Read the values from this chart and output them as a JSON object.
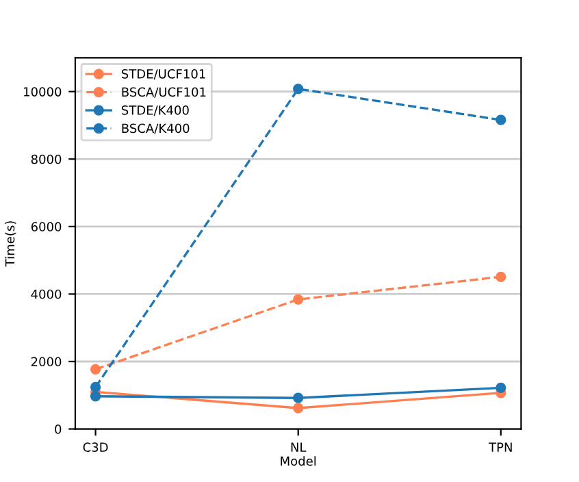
{
  "chart_data": {
    "type": "line",
    "xlabel": "Model",
    "ylabel": "Time(s)",
    "categories": [
      "C3D",
      "NL",
      "TPN"
    ],
    "series": [
      {
        "name": "STDE/UCF101",
        "color": "#ff7f50",
        "line_style": "solid",
        "values": [
          1100,
          620,
          1070
        ]
      },
      {
        "name": "BSCA/UCF101",
        "color": "#ff7f50",
        "line_style": "dashed",
        "values": [
          1770,
          3840,
          4510
        ]
      },
      {
        "name": "STDE/K400",
        "color": "#1f77b4",
        "line_style": "solid",
        "values": [
          970,
          920,
          1220
        ]
      },
      {
        "name": "BSCA/K400",
        "color": "#1f77b4",
        "line_style": "dashed",
        "values": [
          1240,
          10080,
          9160
        ]
      }
    ],
    "ylim": [
      0,
      11000
    ],
    "yticks": [
      0,
      2000,
      4000,
      6000,
      8000,
      10000
    ],
    "grid": "y",
    "legend": "top left",
    "marker": "circle"
  }
}
